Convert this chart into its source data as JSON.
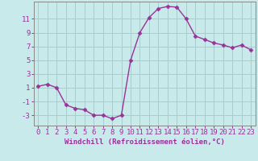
{
  "x": [
    0,
    1,
    2,
    3,
    4,
    5,
    6,
    7,
    8,
    9,
    10,
    11,
    12,
    13,
    14,
    15,
    16,
    17,
    18,
    19,
    20,
    21,
    22,
    23
  ],
  "y": [
    1.2,
    1.5,
    1.0,
    -1.5,
    -2.0,
    -2.2,
    -3.0,
    -3.0,
    -3.5,
    -3.0,
    5.0,
    9.0,
    11.2,
    12.5,
    12.8,
    12.7,
    11.0,
    8.5,
    8.0,
    7.5,
    7.2,
    6.8,
    7.2,
    6.5
  ],
  "line_color": "#993399",
  "marker": "D",
  "markersize": 2.5,
  "linewidth": 1.0,
  "bg_color": "#c8eaea",
  "grid_color": "#aacccc",
  "xlabel": "Windchill (Refroidissement éolien,°C)",
  "xlim": [
    -0.5,
    23.5
  ],
  "ylim": [
    -4.5,
    13.5
  ],
  "yticks": [
    -3,
    -1,
    1,
    3,
    5,
    7,
    9,
    11
  ],
  "xtick_labels": [
    "0",
    "1",
    "2",
    "3",
    "4",
    "5",
    "6",
    "7",
    "8",
    "9",
    "10",
    "11",
    "12",
    "13",
    "14",
    "15",
    "16",
    "17",
    "18",
    "19",
    "20",
    "21",
    "22",
    "23"
  ],
  "xlabel_fontsize": 6.5,
  "tick_fontsize": 6.5,
  "xlabel_color": "#993399",
  "tick_color": "#993399",
  "spine_color": "#888888"
}
